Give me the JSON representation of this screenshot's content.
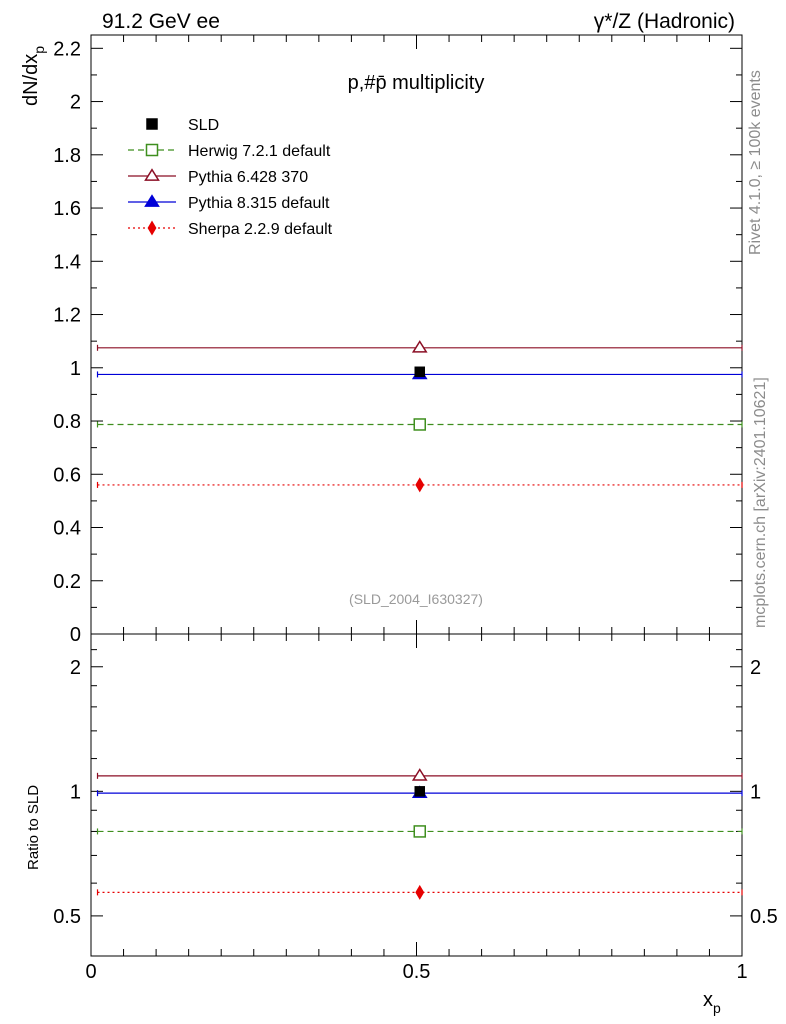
{
  "header": {
    "left": "91.2 GeV ee",
    "right": "γ*/Z (Hadronic)"
  },
  "side": {
    "rivet": "Rivet 4.1.0, ≥ 100k events",
    "mcplots": "mcplots.cern.ch [arXiv:2401.10621]"
  },
  "chart_data": {
    "type": "scatter",
    "title": "p,#p̄ multiplicity",
    "watermark": "(SLD_2004_I630327)",
    "xlabel": "x",
    "xlabel_sub": "p",
    "ylabel": "dN/dx",
    "ylabel_sub": "p",
    "ratio_ylabel": "Ratio to SLD",
    "xlim": [
      0,
      1
    ],
    "ylim": [
      0,
      2.25
    ],
    "ratio_ylim": [
      0.4,
      2.4
    ],
    "x_ticks": [
      "0",
      "0.5",
      "1"
    ],
    "y_ticks": [
      "0",
      "0.2",
      "0.4",
      "0.6",
      "0.8",
      "1",
      "1.2",
      "1.4",
      "1.6",
      "1.8",
      "2",
      "2.2"
    ],
    "ratio_ticks": [
      "0.5",
      "1",
      "2"
    ],
    "x_center": 0.505,
    "x_range": [
      0.01,
      1.0
    ],
    "legend": [
      "SLD",
      "Herwig 7.2.1 default",
      "Pythia 6.428 370",
      "Pythia 8.315 default",
      "Sherpa 2.2.9 default"
    ],
    "series": [
      {
        "name": "SLD",
        "value": 0.985,
        "ratio": 1.0,
        "color": "#000000",
        "marker": "square-filled",
        "line": "none"
      },
      {
        "name": "Herwig 7.2.1 default",
        "value": 0.787,
        "ratio": 0.8,
        "color": "#3f8f1f",
        "marker": "square-open",
        "line": "dashed"
      },
      {
        "name": "Pythia 6.428 370",
        "value": 1.075,
        "ratio": 1.09,
        "color": "#8b0f25",
        "marker": "triangle-open",
        "line": "solid"
      },
      {
        "name": "Pythia 8.315 default",
        "value": 0.975,
        "ratio": 0.99,
        "color": "#0000d8",
        "marker": "triangle-filled",
        "line": "solid"
      },
      {
        "name": "Sherpa 2.2.9 default",
        "value": 0.56,
        "ratio": 0.57,
        "color": "#e60000",
        "marker": "diamond-filled",
        "line": "dotted"
      }
    ]
  }
}
